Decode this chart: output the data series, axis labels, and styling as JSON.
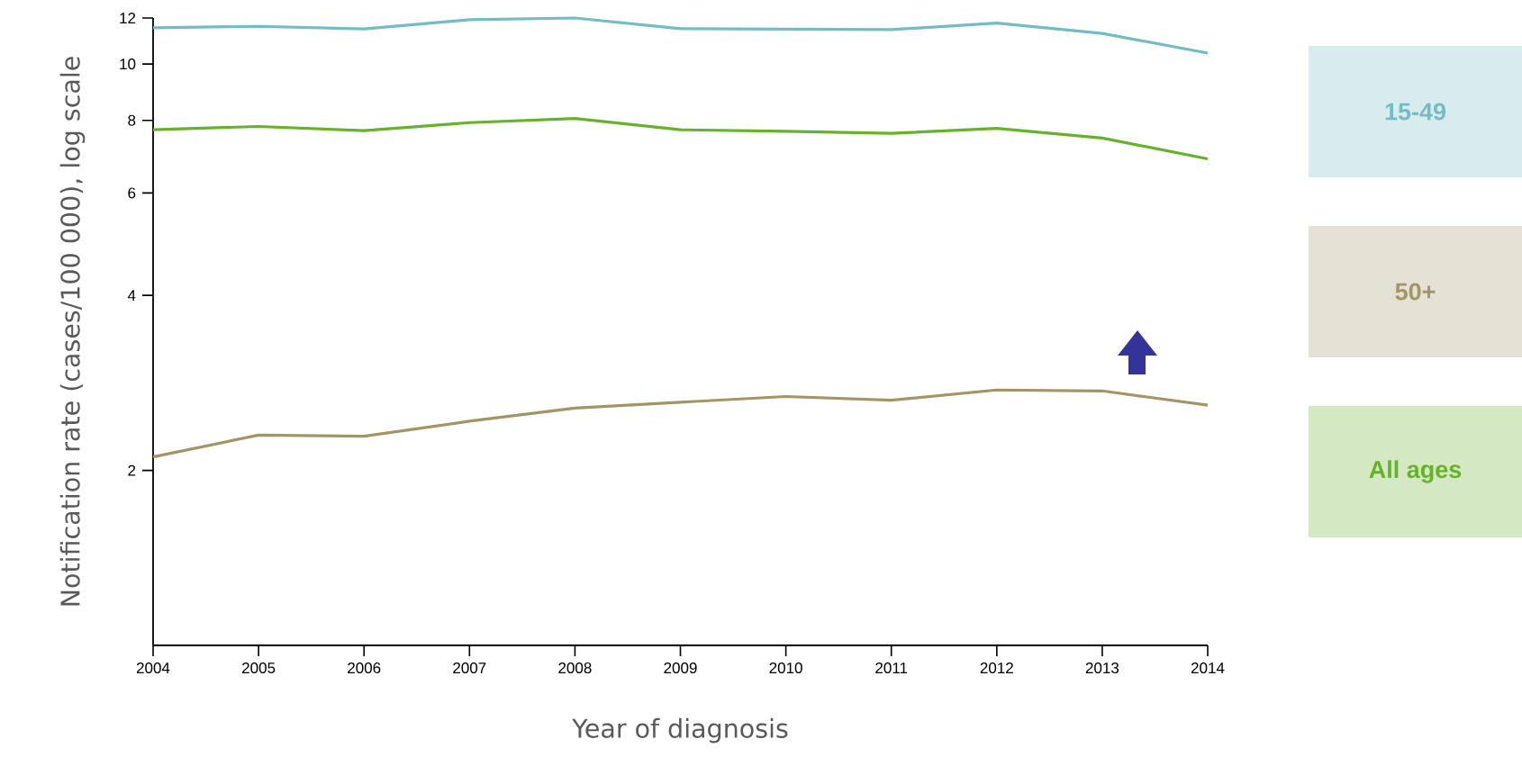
{
  "chart_data": {
    "type": "line",
    "xlabel": "Year of diagnosis",
    "ylabel": "Notification rate (cases/100 000), log scale",
    "x": [
      2004,
      2005,
      2006,
      2007,
      2008,
      2009,
      2010,
      2011,
      2012,
      2013,
      2014
    ],
    "series": [
      {
        "name": "15-49",
        "color": "#74bcc4",
        "values": [
          11.54,
          11.61,
          11.49,
          11.92,
          12,
          11.5,
          11.48,
          11.46,
          11.76,
          11.29,
          10.44
        ]
      },
      {
        "name": "50+",
        "color": "#a39565",
        "values": [
          2.11,
          2.3,
          2.29,
          2.43,
          2.56,
          2.62,
          2.68,
          2.64,
          2.75,
          2.74,
          2.59
        ]
      },
      {
        "name": "All ages",
        "color": "#66b22a",
        "values": [
          7.71,
          7.81,
          7.68,
          7.93,
          8.06,
          7.71,
          7.66,
          7.6,
          7.75,
          7.46,
          6.87
        ]
      }
    ],
    "log": "y",
    "ylim": [
      1,
      12
    ],
    "yticks": [
      2,
      4,
      6,
      8,
      10,
      12
    ],
    "xlim": [
      2004,
      2014
    ],
    "xticks": [
      2004,
      2005,
      2006,
      2007,
      2008,
      2009,
      2010,
      2011,
      2012,
      2013,
      2014
    ],
    "legend": "right",
    "marker": "none",
    "line_style": "solid"
  }
}
